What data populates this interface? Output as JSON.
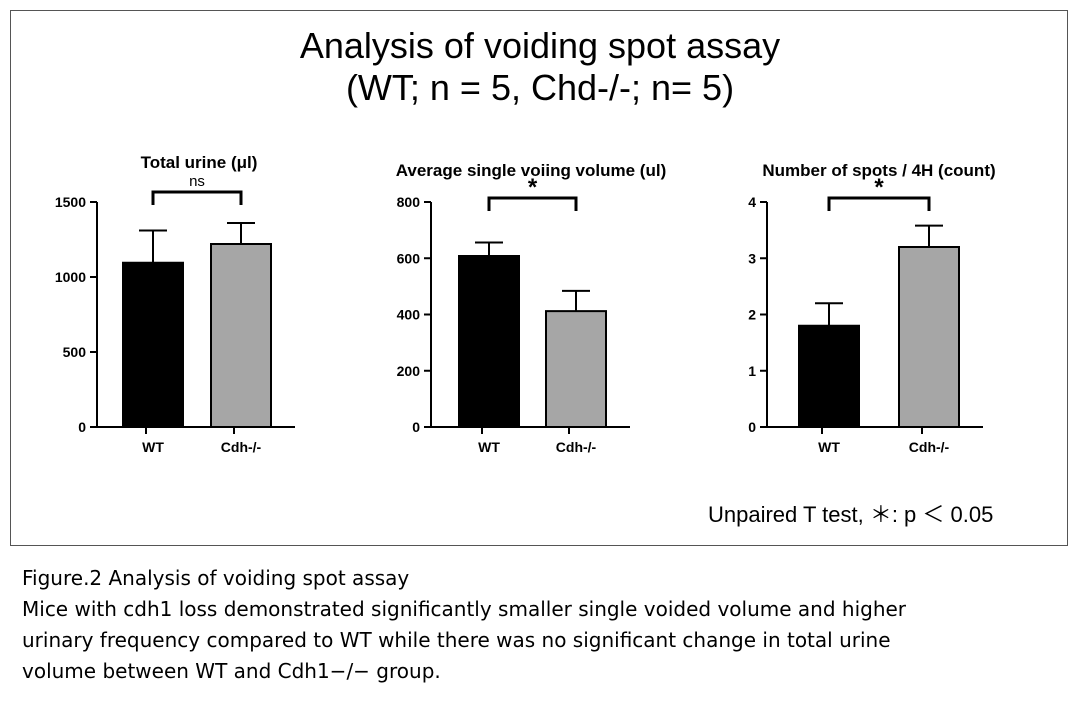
{
  "figure": {
    "title_line1": "Analysis of voiding spot assay",
    "title_line2": "(WT; n = 5, Chd-/-; n= 5)",
    "test_note": "Unpaired T test, ＊: p ＜ 0.05",
    "caption_title": "Figure.2  Analysis of voiding spot assay",
    "caption_lines": [
      "Mice with cdh1 loss demonstrated significantly smaller single voided volume and higher",
      "urinary frequency compared to WT while there was no significant change in total urine",
      "volume between WT and Cdh1−/− group."
    ]
  },
  "colors": {
    "wt": "#000000",
    "cdh": "#a6a6a6"
  },
  "chart_data": [
    {
      "type": "bar",
      "title": "Total urine (μl)",
      "categories": [
        "WT",
        "Cdh-/-"
      ],
      "values": [
        1095,
        1220
      ],
      "error": [
        215,
        140
      ],
      "ylim": [
        0,
        1500
      ],
      "yticks": [
        0,
        500,
        1000,
        1500
      ],
      "significance": "ns"
    },
    {
      "type": "bar",
      "title": "Average single voiing volume (ul)",
      "categories": [
        "WT",
        "Cdh-/-"
      ],
      "values": [
        608,
        412
      ],
      "error": [
        48,
        72
      ],
      "ylim": [
        0,
        800
      ],
      "yticks": [
        0,
        200,
        400,
        600,
        800
      ],
      "significance": "*"
    },
    {
      "type": "bar",
      "title": "Number of spots / 4H (count)",
      "categories": [
        "WT",
        "Cdh-/-"
      ],
      "values": [
        1.8,
        3.2
      ],
      "error": [
        0.4,
        0.38
      ],
      "ylim": [
        0,
        4
      ],
      "yticks": [
        0,
        1,
        2,
        3,
        4
      ],
      "significance": "*"
    }
  ]
}
